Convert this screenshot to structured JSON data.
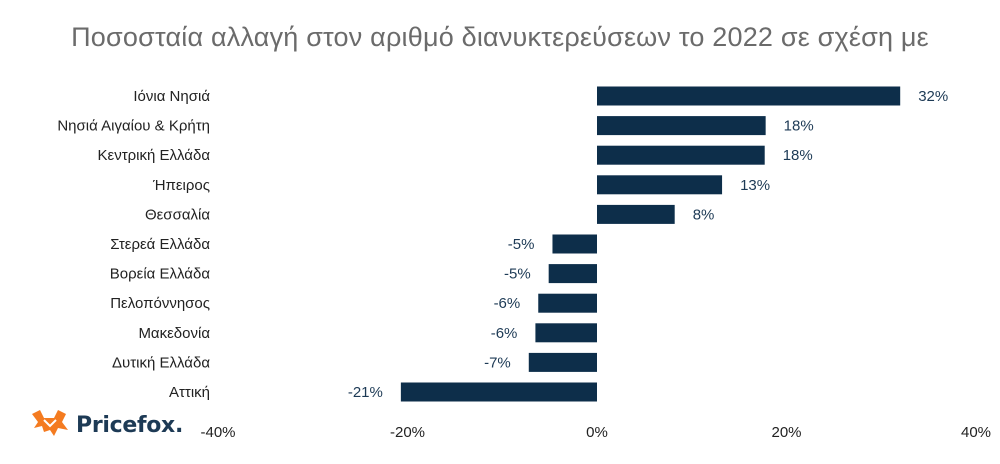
{
  "brand": {
    "name": "Pricefox.",
    "logo_icon": "fox-icon",
    "logo_color": "#f47b20",
    "text_color": "#1d3a55"
  },
  "colors": {
    "bar": "#0d2e4a",
    "label": "#1d3a55"
  },
  "chart_data": {
    "type": "bar",
    "orientation": "horizontal",
    "title": "Ποσοσταία αλλαγή στον αριθμό διανυκτερεύσεων το 2022 σε σχέση με",
    "xlabel": "",
    "ylabel": "",
    "xlim": [
      -40,
      40
    ],
    "xticks": [
      -40,
      -20,
      0,
      20,
      40
    ],
    "xtick_labels": [
      "-40%",
      "-20%",
      "0%",
      "20%",
      "40%"
    ],
    "grid": false,
    "categories": [
      "Ιόνια Νησιά",
      "Νησιά Αιγαίου & Κρήτη",
      "Κεντρική Ελλάδα",
      "Ήπειρος",
      "Θεσσαλία",
      "Στερεά Ελλάδα",
      "Βορεία Ελλάδα",
      "Πελοπόννησος",
      "Μακεδονία",
      "Δυτική Ελλάδα",
      "Αττική"
    ],
    "values": [
      32,
      17.8,
      17.7,
      13.2,
      8.2,
      -4.7,
      -5.1,
      -6.2,
      -6.5,
      -7.2,
      -20.7
    ],
    "data_labels": [
      "32%",
      "18%",
      "18%",
      "13%",
      "8%",
      "-5%",
      "-5%",
      "-6%",
      "-6%",
      "-7%",
      "-21%"
    ]
  }
}
